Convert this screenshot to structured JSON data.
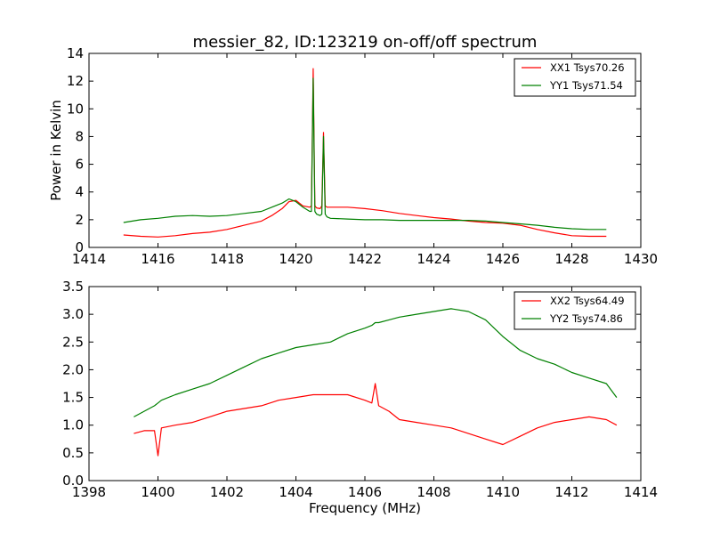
{
  "chart_data": [
    {
      "type": "line",
      "title": "messier_82, ID:123219 on-off/off spectrum",
      "xlabel": "",
      "ylabel": "Power in Kelvin",
      "xlim": [
        1414,
        1430
      ],
      "ylim": [
        0,
        14
      ],
      "xticks": [
        "1414",
        "1416",
        "1418",
        "1420",
        "1422",
        "1424",
        "1426",
        "1428",
        "1430"
      ],
      "yticks": [
        "0",
        "2",
        "4",
        "6",
        "8",
        "10",
        "12",
        "14"
      ],
      "grid": false,
      "legend_position": "top-right",
      "series": [
        {
          "name": "XX1 Tsys70.26",
          "color": "#ff0000",
          "x": [
            1415.0,
            1415.5,
            1416.0,
            1416.5,
            1417.0,
            1417.5,
            1418.0,
            1418.5,
            1419.0,
            1419.3,
            1419.6,
            1419.8,
            1420.0,
            1420.2,
            1420.4,
            1420.45,
            1420.5,
            1420.55,
            1420.6,
            1420.7,
            1420.75,
            1420.8,
            1420.85,
            1420.9,
            1421.0,
            1421.5,
            1422.0,
            1422.5,
            1423.0,
            1423.5,
            1424.0,
            1424.5,
            1425.0,
            1425.5,
            1426.0,
            1426.5,
            1427.0,
            1427.5,
            1428.0,
            1428.5,
            1429.0
          ],
          "y": [
            0.9,
            0.8,
            0.75,
            0.85,
            1.0,
            1.1,
            1.3,
            1.6,
            1.9,
            2.3,
            2.8,
            3.3,
            3.4,
            3.0,
            2.9,
            3.0,
            12.9,
            3.0,
            2.85,
            2.8,
            3.0,
            8.3,
            3.0,
            2.9,
            2.9,
            2.9,
            2.8,
            2.65,
            2.45,
            2.3,
            2.15,
            2.05,
            1.9,
            1.8,
            1.75,
            1.6,
            1.3,
            1.05,
            0.85,
            0.8,
            0.8
          ]
        },
        {
          "name": "YY1 Tsys71.54",
          "color": "#008000",
          "x": [
            1415.0,
            1415.5,
            1416.0,
            1416.5,
            1417.0,
            1417.5,
            1418.0,
            1418.5,
            1419.0,
            1419.3,
            1419.6,
            1419.8,
            1420.0,
            1420.2,
            1420.4,
            1420.45,
            1420.5,
            1420.55,
            1420.6,
            1420.7,
            1420.75,
            1420.8,
            1420.85,
            1420.9,
            1421.0,
            1421.5,
            1422.0,
            1422.5,
            1423.0,
            1423.5,
            1424.0,
            1424.5,
            1425.0,
            1425.5,
            1426.0,
            1426.5,
            1427.0,
            1427.5,
            1428.0,
            1428.5,
            1429.0
          ],
          "y": [
            1.8,
            2.0,
            2.1,
            2.25,
            2.3,
            2.25,
            2.3,
            2.45,
            2.6,
            2.9,
            3.2,
            3.5,
            3.3,
            2.9,
            2.6,
            2.6,
            12.2,
            2.6,
            2.4,
            2.3,
            2.4,
            8.0,
            2.4,
            2.2,
            2.1,
            2.05,
            2.0,
            2.0,
            1.95,
            1.95,
            1.95,
            1.95,
            1.95,
            1.9,
            1.8,
            1.7,
            1.6,
            1.45,
            1.35,
            1.3,
            1.3
          ]
        }
      ]
    },
    {
      "type": "line",
      "title": "",
      "xlabel": "Frequency (MHz)",
      "ylabel": "",
      "xlim": [
        1398,
        1414
      ],
      "ylim": [
        0.0,
        3.5
      ],
      "xticks": [
        "1398",
        "1400",
        "1402",
        "1404",
        "1406",
        "1408",
        "1410",
        "1412",
        "1414"
      ],
      "yticks": [
        "0.0",
        "0.5",
        "1.0",
        "1.5",
        "2.0",
        "2.5",
        "3.0",
        "3.5"
      ],
      "grid": false,
      "legend_position": "top-right",
      "series": [
        {
          "name": "XX2 Tsys64.49",
          "color": "#ff0000",
          "x": [
            1399.3,
            1399.6,
            1399.9,
            1400.0,
            1400.1,
            1400.5,
            1401.0,
            1401.5,
            1402.0,
            1402.5,
            1403.0,
            1403.5,
            1404.0,
            1404.5,
            1405.0,
            1405.5,
            1406.0,
            1406.2,
            1406.3,
            1406.4,
            1406.7,
            1407.0,
            1407.5,
            1408.0,
            1408.5,
            1409.0,
            1409.5,
            1410.0,
            1410.5,
            1411.0,
            1411.5,
            1412.0,
            1412.5,
            1413.0,
            1413.3
          ],
          "y": [
            0.85,
            0.9,
            0.9,
            0.45,
            0.95,
            1.0,
            1.05,
            1.15,
            1.25,
            1.3,
            1.35,
            1.45,
            1.5,
            1.55,
            1.55,
            1.55,
            1.45,
            1.4,
            1.75,
            1.35,
            1.25,
            1.1,
            1.05,
            1.0,
            0.95,
            0.85,
            0.75,
            0.65,
            0.8,
            0.95,
            1.05,
            1.1,
            1.15,
            1.1,
            1.0
          ]
        },
        {
          "name": "YY2 Tsys74.86",
          "color": "#008000",
          "x": [
            1399.3,
            1399.6,
            1399.9,
            1400.0,
            1400.1,
            1400.5,
            1401.0,
            1401.5,
            1402.0,
            1402.5,
            1403.0,
            1403.5,
            1404.0,
            1404.5,
            1405.0,
            1405.5,
            1406.0,
            1406.2,
            1406.3,
            1406.4,
            1406.7,
            1407.0,
            1407.5,
            1408.0,
            1408.5,
            1409.0,
            1409.5,
            1410.0,
            1410.5,
            1411.0,
            1411.5,
            1412.0,
            1412.5,
            1413.0,
            1413.3
          ],
          "y": [
            1.15,
            1.25,
            1.35,
            1.4,
            1.45,
            1.55,
            1.65,
            1.75,
            1.9,
            2.05,
            2.2,
            2.3,
            2.4,
            2.45,
            2.5,
            2.65,
            2.75,
            2.8,
            2.85,
            2.85,
            2.9,
            2.95,
            3.0,
            3.05,
            3.1,
            3.05,
            2.9,
            2.6,
            2.35,
            2.2,
            2.1,
            1.95,
            1.85,
            1.75,
            1.5
          ]
        }
      ]
    }
  ]
}
